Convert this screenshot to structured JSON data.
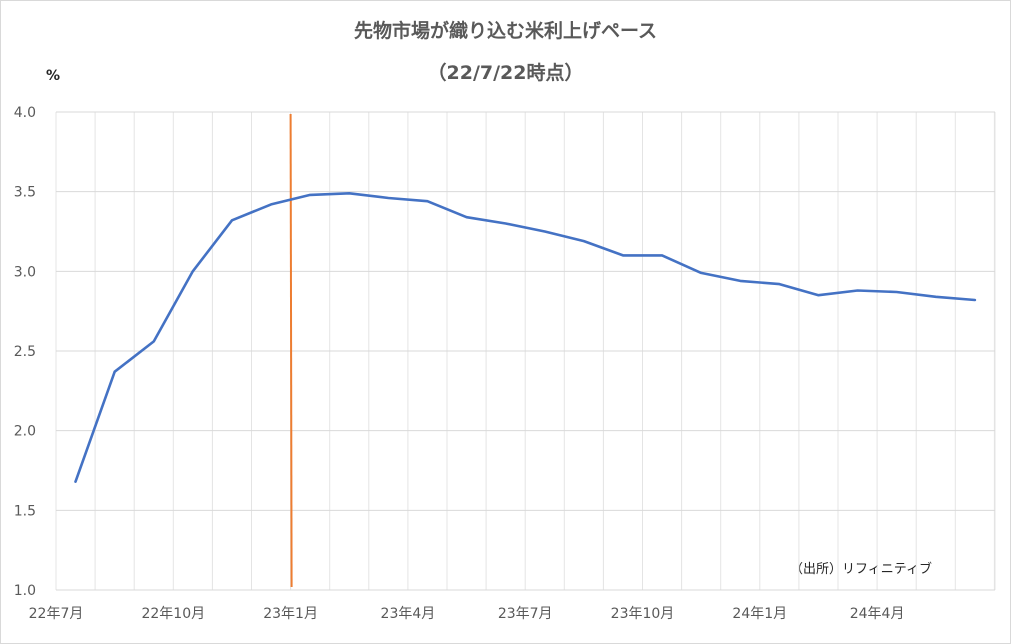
{
  "chart_data": {
    "type": "line",
    "title": "先物市場が織り込む米利上げペース",
    "subtitle": "（22/7/22時点）",
    "ylabel": "%",
    "ylim": [
      1.0,
      4.0
    ],
    "yticks": [
      "4.0",
      "3.5",
      "3.0",
      "2.5",
      "2.0",
      "1.5",
      "1.0"
    ],
    "xticks": [
      "22年7月",
      "22年10月",
      "23年1月",
      "23年4月",
      "23年7月",
      "23年10月",
      "24年1月",
      "24年4月"
    ],
    "grid": true,
    "series": [
      {
        "color": "#4472c4",
        "points": [
          {
            "m": 0.5,
            "v": 1.68
          },
          {
            "m": 1.5,
            "v": 2.37
          },
          {
            "m": 2.5,
            "v": 2.56
          },
          {
            "m": 3.5,
            "v": 3.0
          },
          {
            "m": 4.5,
            "v": 3.32
          },
          {
            "m": 5.5,
            "v": 3.42
          },
          {
            "m": 6.5,
            "v": 3.48
          },
          {
            "m": 7.5,
            "v": 3.49
          },
          {
            "m": 8.5,
            "v": 3.46
          },
          {
            "m": 9.5,
            "v": 3.44
          },
          {
            "m": 10.5,
            "v": 3.34
          },
          {
            "m": 11.5,
            "v": 3.3
          },
          {
            "m": 12.5,
            "v": 3.25
          },
          {
            "m": 13.5,
            "v": 3.19
          },
          {
            "m": 14.5,
            "v": 3.1
          },
          {
            "m": 15.5,
            "v": 3.1
          },
          {
            "m": 16.5,
            "v": 2.99
          },
          {
            "m": 17.5,
            "v": 2.94
          },
          {
            "m": 18.5,
            "v": 2.92
          },
          {
            "m": 19.5,
            "v": 2.85
          },
          {
            "m": 20.5,
            "v": 2.88
          },
          {
            "m": 21.5,
            "v": 2.87
          },
          {
            "m": 22.5,
            "v": 2.84
          },
          {
            "m": 23.5,
            "v": 2.82
          }
        ]
      }
    ],
    "marker_line": {
      "m": 6.0,
      "color": "#ed7d31"
    }
  },
  "source": "（出所）リフィニティブ"
}
